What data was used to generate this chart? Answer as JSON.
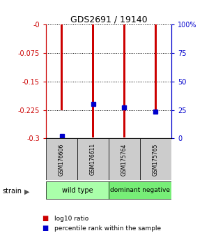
{
  "title": "GDS2691 / 19140",
  "samples": [
    "GSM176606",
    "GSM176611",
    "GSM175764",
    "GSM175765"
  ],
  "log10_ratios": [
    -0.225,
    -0.298,
    -0.298,
    -0.232
  ],
  "percentile_ranks": [
    2.0,
    30.0,
    27.0,
    23.5
  ],
  "ylim_left": [
    -0.3,
    0.0
  ],
  "ylim_right": [
    0,
    100
  ],
  "yticks_left": [
    0.0,
    -0.075,
    -0.15,
    -0.225,
    -0.3
  ],
  "yticks_right": [
    100,
    75,
    50,
    25,
    0
  ],
  "ytick_labels_left": [
    "-0",
    "-0.075",
    "-0.15",
    "-0.225",
    "-0.3"
  ],
  "ytick_labels_right": [
    "100%",
    "75",
    "50",
    "25",
    "0"
  ],
  "bar_color": "#cc0000",
  "percentile_color": "#0000cc",
  "bar_width": 0.08,
  "background_color": "#ffffff",
  "legend_items": [
    "log10 ratio",
    "percentile rank within the sample"
  ],
  "legend_colors": [
    "#cc0000",
    "#0000cc"
  ],
  "strain_label": "strain",
  "group_label_wt": "wild type",
  "group_label_dn": "dominant negative",
  "group_wt_color": "#aaffaa",
  "group_dn_color": "#77ee77"
}
